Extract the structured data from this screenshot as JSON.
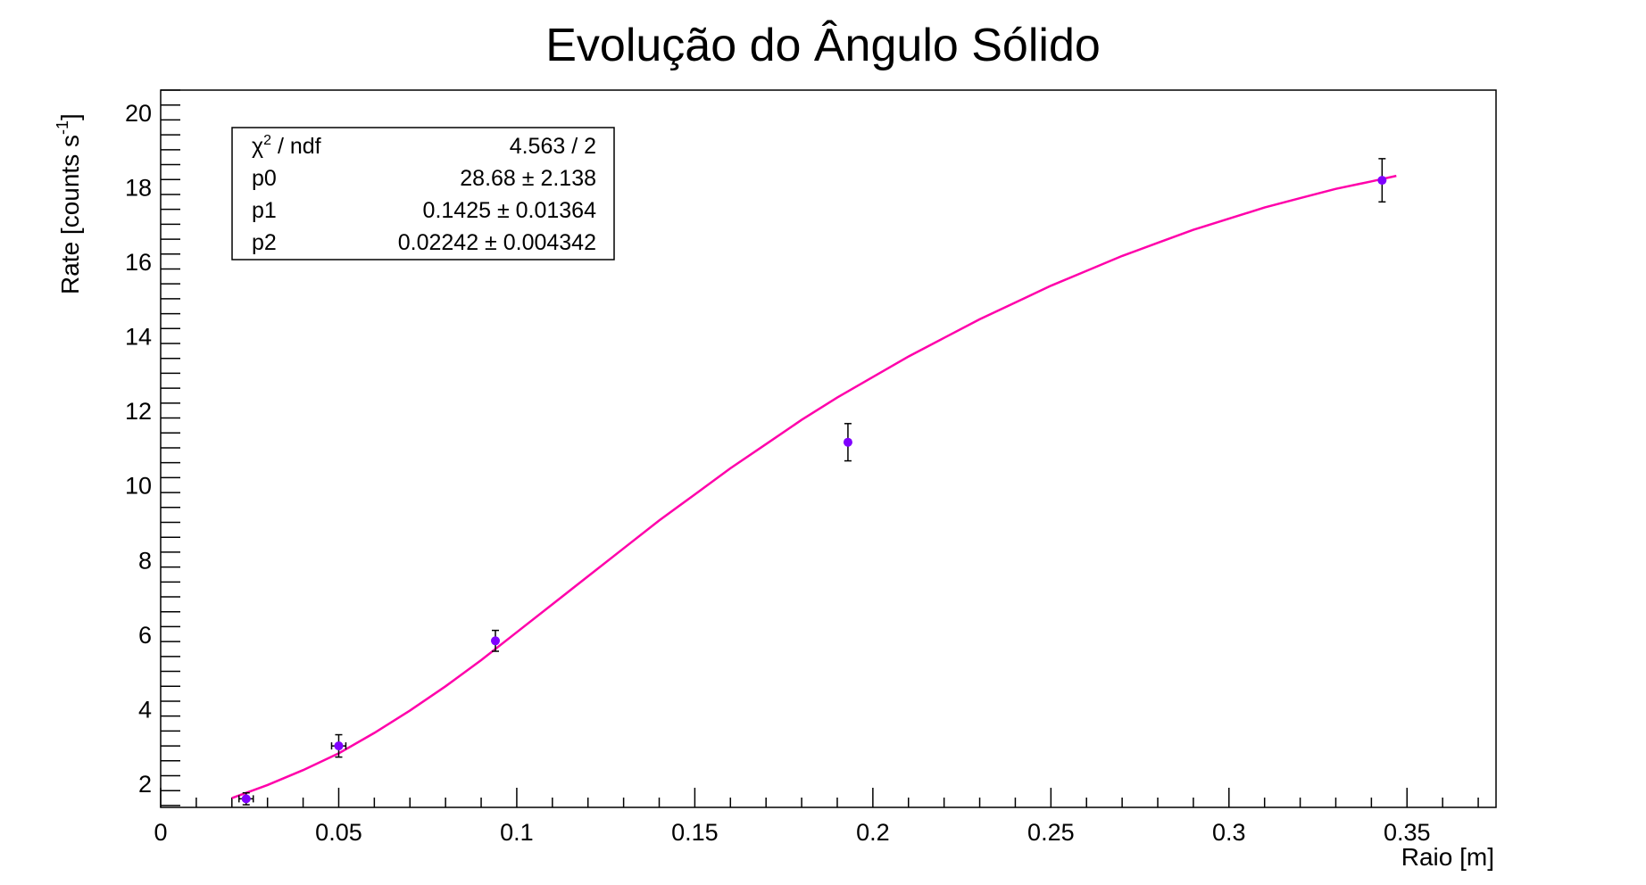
{
  "chart_data": {
    "type": "scatter",
    "title": "Evolução do Ângulo Sólido",
    "xlabel": "Raio [m]",
    "ylabel": "Rate [counts s",
    "ylabel_superscript": "-1",
    "ylabel_suffix": "]",
    "xlim": [
      0,
      0.375
    ],
    "ylim": [
      1.35,
      20.6
    ],
    "x_tick_labels": [
      "0",
      "0.05",
      "0.1",
      "0.15",
      "0.2",
      "0.25",
      "0.3",
      "0.35"
    ],
    "y_tick_labels": [
      "2",
      "4",
      "6",
      "8",
      "10",
      "12",
      "14",
      "16",
      "18",
      "20"
    ],
    "grid": false,
    "marker_color": "#8000ff",
    "fit_color": "#ff00aa",
    "points": [
      {
        "x": 0.024,
        "y": 1.58,
        "xerr": 0.002,
        "yerr": 0.16
      },
      {
        "x": 0.05,
        "y": 3.0,
        "xerr": 0.002,
        "yerr": 0.3
      },
      {
        "x": 0.094,
        "y": 5.82,
        "xerr": 0.0005,
        "yerr": 0.28
      },
      {
        "x": 0.193,
        "y": 11.15,
        "xerr": 0.0005,
        "yerr": 0.5
      },
      {
        "x": 0.343,
        "y": 18.18,
        "xerr": 0.0005,
        "yerr": 0.58
      }
    ],
    "fit_curve": {
      "x": [
        0.02,
        0.03,
        0.04,
        0.05,
        0.06,
        0.07,
        0.08,
        0.09,
        0.1,
        0.11,
        0.12,
        0.13,
        0.14,
        0.15,
        0.16,
        0.17,
        0.18,
        0.19,
        0.2,
        0.21,
        0.22,
        0.23,
        0.24,
        0.25,
        0.26,
        0.27,
        0.28,
        0.29,
        0.3,
        0.31,
        0.32,
        0.33,
        0.34,
        0.347
      ],
      "y": [
        1.6,
        1.95,
        2.35,
        2.8,
        3.35,
        3.95,
        4.6,
        5.3,
        6.05,
        6.8,
        7.55,
        8.3,
        9.05,
        9.75,
        10.45,
        11.1,
        11.75,
        12.35,
        12.9,
        13.45,
        13.95,
        14.45,
        14.9,
        15.35,
        15.75,
        16.15,
        16.5,
        16.85,
        17.15,
        17.45,
        17.7,
        17.95,
        18.15,
        18.3
      ]
    },
    "legend_position": "top-left",
    "stats": [
      {
        "label_main": "χ",
        "label_sup": "2",
        "label_rest": " / ndf",
        "value": "4.563 / 2"
      },
      {
        "label_main": "p0",
        "label_sup": "",
        "label_rest": "",
        "value": "28.68 ± 2.138"
      },
      {
        "label_main": "p1",
        "label_sup": "",
        "label_rest": "",
        "value": "0.1425 ± 0.01364"
      },
      {
        "label_main": "p2",
        "label_sup": "",
        "label_rest": "",
        "value": "0.02242 ± 0.004342"
      }
    ]
  }
}
